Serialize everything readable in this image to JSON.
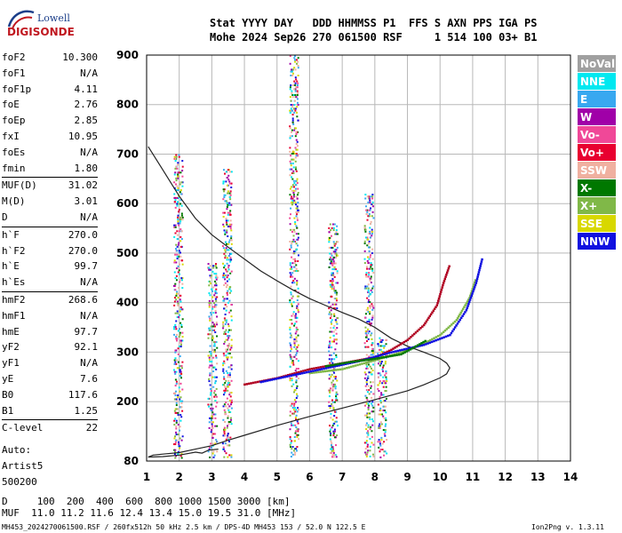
{
  "logo": {
    "line1": "Lowell",
    "line2": "DIGISONDE"
  },
  "header": {
    "row1": "Stat YYYY DAY   DDD HHMMSS P1  FFS S AXN PPS IGA PS",
    "row2": "Mohe 2024 Sep26 270 061500 RSF     1 514 100 03+ B1"
  },
  "params": [
    {
      "group": [
        {
          "name": "foF2",
          "value": "10.300"
        },
        {
          "name": "foF1",
          "value": "N/A"
        },
        {
          "name": "foF1p",
          "value": "4.11"
        },
        {
          "name": "foE",
          "value": "2.76"
        },
        {
          "name": "foEp",
          "value": "2.85"
        },
        {
          "name": "fxI",
          "value": "10.95"
        },
        {
          "name": "foEs",
          "value": "N/A"
        },
        {
          "name": "fmin",
          "value": "1.80"
        }
      ]
    },
    {
      "group": [
        {
          "name": "MUF(D)",
          "value": "31.02"
        },
        {
          "name": "M(D)",
          "value": "3.01"
        },
        {
          "name": "D",
          "value": "N/A"
        }
      ]
    },
    {
      "group": [
        {
          "name": "h`F",
          "value": "270.0"
        },
        {
          "name": "h`F2",
          "value": "270.0"
        },
        {
          "name": "h`E",
          "value": "99.7"
        },
        {
          "name": "h`Es",
          "value": "N/A"
        }
      ]
    },
    {
      "group": [
        {
          "name": "hmF2",
          "value": "268.6"
        },
        {
          "name": "hmF1",
          "value": "N/A"
        },
        {
          "name": "hmE",
          "value": "97.7"
        },
        {
          "name": "yF2",
          "value": "92.1"
        },
        {
          "name": "yF1",
          "value": "N/A"
        },
        {
          "name": "yE",
          "value": "7.6"
        },
        {
          "name": "B0",
          "value": "117.6"
        },
        {
          "name": "B1",
          "value": "1.25"
        }
      ]
    },
    {
      "group": [
        {
          "name": "C-level",
          "value": "22"
        }
      ]
    },
    {
      "group": [
        {
          "name": "Auto:",
          "value": ""
        },
        {
          "name": "Artist5",
          "value": ""
        },
        {
          "name": "500200",
          "value": ""
        }
      ]
    }
  ],
  "legend": [
    {
      "label": "NoVal",
      "bg": "#a0a0a0",
      "fg": "#ffffff"
    },
    {
      "label": "NNE",
      "bg": "#00e8f0",
      "fg": "#ffffff"
    },
    {
      "label": "E",
      "bg": "#38a8f0",
      "fg": "#ffffff"
    },
    {
      "label": "W",
      "bg": "#a000a8",
      "fg": "#ffffff"
    },
    {
      "label": "Vo-",
      "bg": "#f04898",
      "fg": "#ffffff"
    },
    {
      "label": "Vo+",
      "bg": "#e80030",
      "fg": "#ffffff"
    },
    {
      "label": "SSW",
      "bg": "#f0b0a0",
      "fg": "#ffffff"
    },
    {
      "label": "X-",
      "bg": "#007800",
      "fg": "#ffffff"
    },
    {
      "label": "X+",
      "bg": "#80b848",
      "fg": "#ffffff"
    },
    {
      "label": "SSE",
      "bg": "#d8d800",
      "fg": "#ffffff"
    },
    {
      "label": "NNW",
      "bg": "#1010e0",
      "fg": "#ffffff"
    }
  ],
  "footer": {
    "d_row": "D     100  200  400  600  800 1000 1500 3000 [km]",
    "muf_row": "MUF  11.0 11.2 11.6 12.4 13.4 15.0 19.5 31.0 [MHz]",
    "file_info": "MH453_2024270061500.RSF / 260fx512h 50 kHz 2.5 km / DPS-4D MH453 153 / 52.0 N 122.5 E",
    "version": "Ion2Png v. 1.3.11"
  },
  "chart_data": {
    "type": "scatter",
    "title": "",
    "xlabel": "",
    "ylabel": "",
    "xlim": [
      1,
      14
    ],
    "ylim": [
      80,
      900
    ],
    "xticks": [
      "1",
      "2",
      "3",
      "4",
      "5",
      "6",
      "7",
      "8",
      "9",
      "10",
      "11",
      "12",
      "13",
      "14"
    ],
    "yticks": [
      "200",
      "300",
      "400",
      "500",
      "600",
      "700",
      "800",
      "900"
    ],
    "yticks_extra": [
      "80"
    ],
    "grid": true,
    "legend_position": "right",
    "profile_curve": {
      "x": [
        1.05,
        1.5,
        2.0,
        2.5,
        3.0,
        3.5,
        4.0,
        4.5,
        5.0,
        5.5,
        6.0,
        6.5,
        7.0,
        7.5,
        8.0,
        8.5,
        9.0,
        9.5,
        10.0,
        10.2,
        10.3,
        10.2,
        10.0,
        9.5,
        9.0,
        8.0,
        7.0,
        6.0,
        5.0,
        4.0,
        3.5,
        3.0,
        2.5,
        2.0,
        1.5,
        1.2,
        1.05
      ],
      "y": [
        715,
        668,
        615,
        570,
        537,
        512,
        488,
        464,
        444,
        425,
        408,
        394,
        380,
        367,
        350,
        328,
        312,
        300,
        287,
        278,
        268,
        256,
        248,
        234,
        222,
        204,
        187,
        170,
        152,
        132,
        122,
        111,
        104,
        97,
        94,
        92,
        88
      ]
    },
    "lower_curve": {
      "x": [
        1.05,
        1.5,
        2.0,
        2.5,
        2.7,
        2.9,
        3.2
      ],
      "y": [
        88,
        89,
        92,
        98,
        96,
        102,
        104
      ]
    },
    "traces": [
      {
        "name": "Vo+",
        "color": "#b00020",
        "x": [
          4.0,
          5.0,
          6.0,
          7.0,
          8.0,
          8.5,
          9.0,
          9.5,
          9.9,
          10.1,
          10.3
        ],
        "y": [
          235,
          248,
          266,
          278,
          290,
          305,
          325,
          355,
          395,
          440,
          478
        ]
      },
      {
        "name": "X+",
        "color": "#80b848",
        "x": [
          6.0,
          7.0,
          8.0,
          8.8,
          9.5,
          10.0,
          10.5,
          10.9,
          11.1
        ],
        "y": [
          258,
          266,
          284,
          300,
          318,
          335,
          365,
          410,
          450
        ]
      },
      {
        "name": "NNW",
        "color": "#1010e0",
        "x": [
          4.5,
          5.5,
          6.5,
          7.5,
          8.5,
          9.5,
          10.3,
          10.8,
          11.1,
          11.3
        ],
        "y": [
          240,
          254,
          268,
          282,
          300,
          315,
          335,
          385,
          440,
          492
        ]
      },
      {
        "name": "X-",
        "color": "#007800",
        "x": [
          6.5,
          7.2,
          8.0,
          8.8,
          9.2,
          9.6
        ],
        "y": [
          272,
          280,
          287,
          296,
          310,
          325
        ]
      }
    ],
    "vertical_bands": [
      {
        "x": 1.95,
        "ymin": 84,
        "ymax": 700
      },
      {
        "x": 3.0,
        "ymin": 84,
        "ymax": 480
      },
      {
        "x": 3.45,
        "ymin": 84,
        "ymax": 670
      },
      {
        "x": 5.5,
        "ymin": 84,
        "ymax": 900
      },
      {
        "x": 6.7,
        "ymin": 84,
        "ymax": 560
      },
      {
        "x": 7.8,
        "ymin": 84,
        "ymax": 620
      },
      {
        "x": 8.2,
        "ymin": 84,
        "ymax": 330
      }
    ]
  }
}
